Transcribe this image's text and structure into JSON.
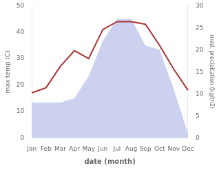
{
  "chart_data": {
    "type": "line",
    "xlabel": "date (month)",
    "ylabel": "max temp (C)",
    "y2label": "med. precipitation (kg/m2)",
    "categories": [
      "Jan",
      "Feb",
      "Mar",
      "Apr",
      "May",
      "Jun",
      "Jul",
      "Aug",
      "Sep",
      "Oct",
      "Nov",
      "Dec"
    ],
    "series": [
      {
        "type": "area",
        "axis": "y2",
        "color": "#b0b8e8",
        "values": [
          8,
          8,
          8,
          9,
          14,
          22,
          27,
          27,
          21,
          20,
          11,
          1
        ]
      },
      {
        "type": "line",
        "color": "#aa3333",
        "values": [
          17,
          19,
          27,
          33,
          30,
          41,
          44,
          44,
          43,
          35,
          26,
          18
        ]
      }
    ],
    "ylim": [
      0,
      50
    ],
    "yticks": [
      0,
      10,
      20,
      30,
      40,
      50
    ],
    "y2lim": [
      0,
      30
    ],
    "y2ticks": [
      0,
      5,
      10,
      15,
      20,
      25,
      30
    ],
    "grid": false
  }
}
